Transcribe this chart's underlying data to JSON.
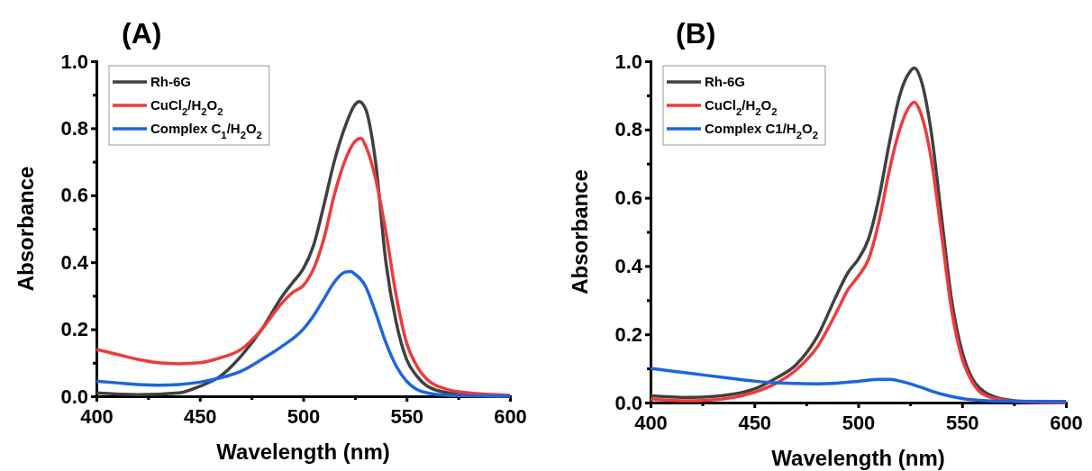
{
  "chart_data": [
    {
      "type": "line",
      "title": "(A)",
      "xlabel": "Wavelength (nm)",
      "ylabel": "Absorbance",
      "xlim": [
        400,
        600
      ],
      "ylim": [
        0,
        1.0
      ],
      "xticks": [
        400,
        {
          "value": 425,
          "label": null
        },
        450,
        {
          "value": 475,
          "label": null
        },
        500,
        {
          "value": 525,
          "label": null
        },
        550,
        {
          "value": 575,
          "label": null
        },
        600
      ],
      "yticks": [
        {
          "value": 0,
          "label": "0.0"
        },
        {
          "value": 0.1,
          "label": null
        },
        0.2,
        {
          "value": 0.3,
          "label": null
        },
        0.4,
        {
          "value": 0.5,
          "label": null
        },
        0.6,
        {
          "value": 0.7,
          "label": null
        },
        0.8,
        {
          "value": 0.9,
          "label": null
        },
        {
          "value": 1,
          "label": "1.0"
        }
      ],
      "grid": false,
      "legend": "top left",
      "marker": "none",
      "line_style": "solid",
      "series": [
        {
          "name": "Rh-6G",
          "color": "#404040",
          "x": [
            400,
            420,
            440,
            450,
            460,
            470,
            480,
            490,
            495,
            500,
            505,
            510,
            515,
            520,
            525,
            527,
            530,
            535,
            540,
            545,
            550,
            555,
            560,
            570,
            580,
            600
          ],
          "values": [
            0.01,
            0.005,
            0.01,
            0.03,
            0.06,
            0.12,
            0.2,
            0.3,
            0.34,
            0.38,
            0.45,
            0.57,
            0.7,
            0.8,
            0.87,
            0.88,
            0.86,
            0.7,
            0.4,
            0.22,
            0.11,
            0.06,
            0.03,
            0.01,
            0.005,
            0
          ]
        },
        {
          "name": "CuCl$_{2}$/H$_{2}$O$_{2}$",
          "color": "#ee3b3b",
          "x": [
            400,
            410,
            420,
            430,
            440,
            450,
            460,
            470,
            480,
            490,
            495,
            500,
            505,
            510,
            515,
            520,
            525,
            528,
            530,
            535,
            540,
            545,
            550,
            555,
            560,
            570,
            580,
            600
          ],
          "values": [
            0.14,
            0.125,
            0.11,
            0.1,
            0.097,
            0.1,
            0.115,
            0.14,
            0.2,
            0.28,
            0.31,
            0.33,
            0.38,
            0.47,
            0.6,
            0.7,
            0.76,
            0.77,
            0.75,
            0.65,
            0.49,
            0.3,
            0.16,
            0.09,
            0.05,
            0.02,
            0.01,
            0.003
          ]
        },
        {
          "name": "Complex C$_{1}$/H$_{2}$O$_{2}$",
          "color": "#1a66e0",
          "x": [
            400,
            410,
            420,
            430,
            440,
            450,
            460,
            470,
            480,
            490,
            500,
            505,
            510,
            515,
            520,
            523,
            525,
            530,
            535,
            540,
            545,
            550,
            555,
            560,
            570,
            600
          ],
          "values": [
            0.045,
            0.04,
            0.035,
            0.033,
            0.035,
            0.042,
            0.055,
            0.075,
            0.11,
            0.15,
            0.2,
            0.24,
            0.29,
            0.34,
            0.37,
            0.372,
            0.365,
            0.33,
            0.25,
            0.16,
            0.09,
            0.045,
            0.02,
            0.01,
            0.003,
            0
          ]
        }
      ]
    },
    {
      "type": "line",
      "title": "(B)",
      "xlabel": "Wavelength (nm)",
      "ylabel": "Absorbance",
      "xlim": [
        400,
        600
      ],
      "ylim": [
        0,
        1.0
      ],
      "xticks": [
        400,
        {
          "value": 425,
          "label": null
        },
        450,
        {
          "value": 475,
          "label": null
        },
        500,
        {
          "value": 525,
          "label": null
        },
        550,
        {
          "value": 575,
          "label": null
        },
        600
      ],
      "yticks": [
        {
          "value": 0,
          "label": "0.0"
        },
        {
          "value": 0.1,
          "label": null
        },
        0.2,
        {
          "value": 0.3,
          "label": null
        },
        0.4,
        {
          "value": 0.5,
          "label": null
        },
        0.6,
        {
          "value": 0.7,
          "label": null
        },
        0.8,
        {
          "value": 0.9,
          "label": null
        },
        {
          "value": 1,
          "label": "1.0"
        }
      ],
      "grid": false,
      "legend": "top left",
      "marker": "none",
      "line_style": "solid",
      "series": [
        {
          "name": "Rh-6G",
          "color": "#404040",
          "x": [
            400,
            420,
            440,
            450,
            460,
            470,
            480,
            490,
            495,
            500,
            505,
            510,
            515,
            520,
            525,
            527,
            530,
            535,
            540,
            545,
            550,
            555,
            560,
            570,
            580,
            600
          ],
          "values": [
            0.02,
            0.015,
            0.025,
            0.04,
            0.07,
            0.11,
            0.19,
            0.32,
            0.38,
            0.42,
            0.48,
            0.6,
            0.76,
            0.9,
            0.97,
            0.98,
            0.95,
            0.8,
            0.55,
            0.3,
            0.15,
            0.07,
            0.035,
            0.01,
            0.003,
            0
          ]
        },
        {
          "name": "CuCl$_{2}$/H$_{2}$O$_{2}$",
          "color": "#ee3b3b",
          "x": [
            400,
            420,
            440,
            450,
            460,
            470,
            480,
            490,
            495,
            500,
            505,
            510,
            515,
            520,
            525,
            527,
            530,
            535,
            540,
            545,
            550,
            555,
            560,
            570,
            580,
            600
          ],
          "values": [
            0.01,
            0.005,
            0.015,
            0.03,
            0.055,
            0.095,
            0.16,
            0.27,
            0.33,
            0.37,
            0.42,
            0.53,
            0.68,
            0.8,
            0.87,
            0.88,
            0.85,
            0.72,
            0.5,
            0.27,
            0.13,
            0.06,
            0.025,
            0.007,
            0.002,
            0
          ]
        },
        {
          "name": "Complex C1/H$_{2}$O$_{2}$",
          "color": "#1a66e0",
          "x": [
            400,
            420,
            440,
            450,
            460,
            470,
            480,
            490,
            500,
            510,
            515,
            520,
            525,
            530,
            540,
            550,
            560,
            570,
            600
          ],
          "values": [
            0.1,
            0.085,
            0.07,
            0.063,
            0.058,
            0.056,
            0.055,
            0.057,
            0.062,
            0.068,
            0.068,
            0.063,
            0.055,
            0.045,
            0.025,
            0.012,
            0.006,
            0.004,
            0.003
          ]
        }
      ]
    }
  ]
}
